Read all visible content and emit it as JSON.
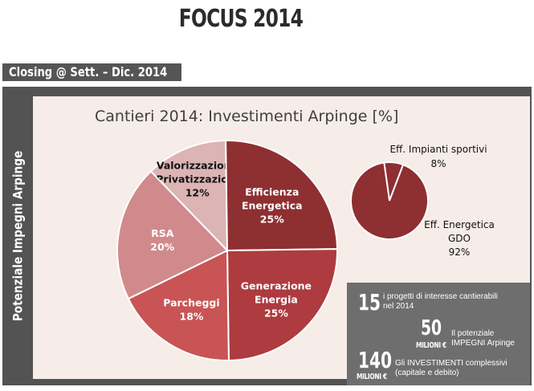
{
  "header": {
    "title": "FOCUS 2014"
  },
  "subheader": {
    "label": "Closing @ Sett. – Dic. 2014"
  },
  "side_label": "Potenziale Impegni Arpinge",
  "colors": {
    "valorizzazioni": "#dcb4b4",
    "efficienza": "#8e2f31",
    "generazione": "#ad3b40",
    "parcheggi": "#c85456",
    "rsa": "#d08a8c",
    "small_pie": "#8e2f31",
    "panel": "#535353",
    "inner": "#f6ece8"
  },
  "chart_data": [
    {
      "type": "pie",
      "title": "Cantieri 2014: Investimenti Arpinge [%]",
      "slices": [
        {
          "label_lines": [
            "Valorizzazioni/",
            "Privatizzazioni"
          ],
          "value": 12,
          "value_label": "12%"
        },
        {
          "label_lines": [
            "Efficienza",
            "Energetica"
          ],
          "value": 25,
          "value_label": "25%"
        },
        {
          "label_lines": [
            "Generazione",
            "Energia"
          ],
          "value": 25,
          "value_label": "25%"
        },
        {
          "label_lines": [
            "Parcheggi"
          ],
          "value": 18,
          "value_label": "18%"
        },
        {
          "label_lines": [
            "RSA"
          ],
          "value": 20,
          "value_label": "20%"
        }
      ]
    },
    {
      "type": "pie",
      "title": "",
      "slices": [
        {
          "label_lines": [
            "Eff. Impianti sportivi"
          ],
          "value": 8,
          "value_label": "8%"
        },
        {
          "label_lines": [
            "Eff. Energetica",
            "GDO"
          ],
          "value": 92,
          "value_label": "92%"
        }
      ]
    }
  ],
  "stats": [
    {
      "number": "15",
      "unit": "",
      "desc_lines": [
        "i progetti di interesse cantierabili",
        "nel 2014"
      ]
    },
    {
      "number": "50",
      "unit": "MILIONI €",
      "desc_lines": [
        "Il potenziale",
        "IMPEGNI Arpinge"
      ]
    },
    {
      "number": "140",
      "unit": "MILIONI €",
      "desc_lines": [
        "Gli INVESTIMENTI complessivi",
        "(capitale e debito)"
      ]
    }
  ]
}
